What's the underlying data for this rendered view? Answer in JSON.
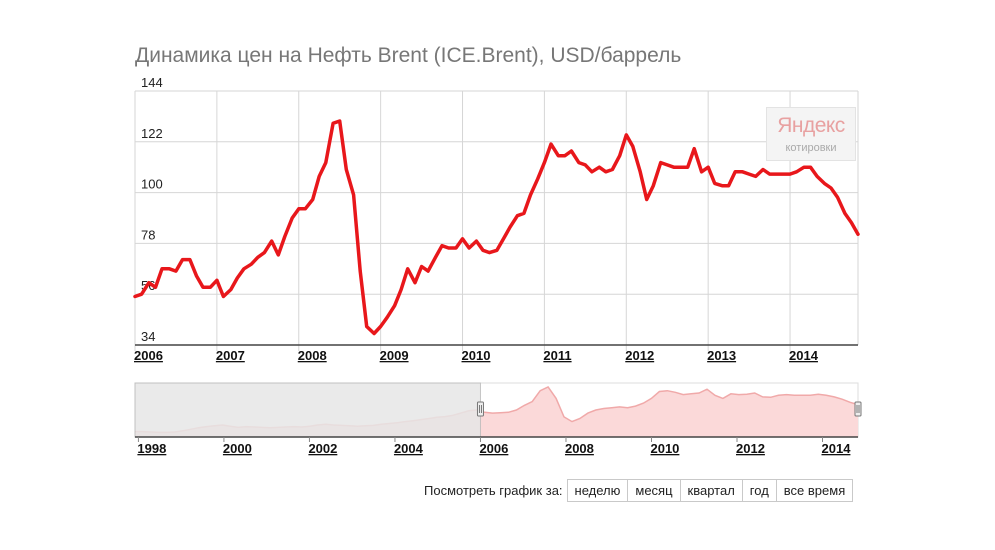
{
  "title": "Динамика цен на Нефть Brent (ICE.Brent), USD/баррель",
  "logo": {
    "name": "Яндекс",
    "subtitle": "котировки"
  },
  "colors": {
    "line": "#e8171b",
    "grid": "#d6d6d6",
    "navigator_fill": "#fbd9d9",
    "navigator_line": "#f0a9a9",
    "selection_mask": "#e7e7e7"
  },
  "period_selector": {
    "label": "Посмотреть график за:",
    "options": [
      "неделю",
      "месяц",
      "квартал",
      "год",
      "все время"
    ]
  },
  "chart_data": {
    "type": "line",
    "title": "Динамика цен на Нефть Brent (ICE.Brent), USD/баррель",
    "xlabel": "",
    "ylabel": "",
    "ylim": [
      34,
      144
    ],
    "xlim": [
      2006.0,
      2014.83
    ],
    "yticks": [
      "144",
      "122",
      "100",
      "78",
      "56",
      "34"
    ],
    "xticks": [
      "2006",
      "2007",
      "2008",
      "2009",
      "2010",
      "2011",
      "2012",
      "2013",
      "2014"
    ],
    "grid": true,
    "series": [
      {
        "x": [
          2006.0,
          2006.08,
          2006.17,
          2006.25,
          2006.33,
          2006.42,
          2006.5,
          2006.58,
          2006.67,
          2006.75,
          2006.83,
          2006.92,
          2007.0,
          2007.08,
          2007.17,
          2007.25,
          2007.33,
          2007.42,
          2007.5,
          2007.58,
          2007.67,
          2007.75,
          2007.83,
          2007.92,
          2008.0,
          2008.08,
          2008.17,
          2008.25,
          2008.33,
          2008.42,
          2008.5,
          2008.58,
          2008.67,
          2008.75,
          2008.83,
          2008.92,
          2009.0,
          2009.08,
          2009.17,
          2009.25,
          2009.33,
          2009.42,
          2009.5,
          2009.58,
          2009.67,
          2009.75,
          2009.83,
          2009.92,
          2010.0,
          2010.08,
          2010.17,
          2010.25,
          2010.33,
          2010.42,
          2010.5,
          2010.58,
          2010.67,
          2010.75,
          2010.83,
          2010.92,
          2011.0,
          2011.08,
          2011.17,
          2011.25,
          2011.33,
          2011.42,
          2011.5,
          2011.58,
          2011.67,
          2011.75,
          2011.83,
          2011.92,
          2012.0,
          2012.08,
          2012.17,
          2012.25,
          2012.33,
          2012.42,
          2012.5,
          2012.58,
          2012.67,
          2012.75,
          2012.83,
          2012.92,
          2013.0,
          2013.08,
          2013.17,
          2013.25,
          2013.33,
          2013.42,
          2013.5,
          2013.58,
          2013.67,
          2013.75,
          2013.83,
          2013.92,
          2014.0,
          2014.08,
          2014.17,
          2014.25,
          2014.33,
          2014.42,
          2014.5,
          2014.58,
          2014.67,
          2014.75,
          2014.83
        ],
        "values": [
          55,
          56,
          61,
          59,
          67,
          67,
          66,
          71,
          71,
          64,
          59,
          59,
          62,
          55,
          58,
          63,
          67,
          69,
          72,
          74,
          79,
          73,
          81,
          89,
          93,
          93,
          97,
          107,
          113,
          130,
          131,
          110,
          99,
          66,
          42,
          39,
          42,
          46,
          51,
          58,
          67,
          61,
          68,
          66,
          72,
          77,
          76,
          76,
          80,
          76,
          79,
          75,
          74,
          75,
          80,
          85,
          90,
          91,
          99,
          106,
          113,
          121,
          116,
          116,
          118,
          113,
          112,
          109,
          111,
          109,
          110,
          116,
          125,
          120,
          109,
          97,
          103,
          113,
          112,
          111,
          111,
          111,
          119,
          109,
          111,
          104,
          103,
          103,
          109,
          109,
          108,
          107,
          110,
          108,
          108,
          108,
          108,
          109,
          111,
          111,
          107,
          104,
          102,
          98,
          91,
          87,
          82
        ]
      }
    ],
    "navigator": {
      "xticks": [
        "1998",
        "2000",
        "2002",
        "2004",
        "2006",
        "2008",
        "2010",
        "2012",
        "2014"
      ],
      "xlim": [
        1997.92,
        2014.83
      ],
      "selection": [
        1997.92,
        2006.0
      ],
      "values": [
        14,
        14,
        13,
        12,
        12,
        13,
        16,
        20,
        24,
        27,
        29,
        31,
        28,
        25,
        27,
        26,
        25,
        24,
        25,
        26,
        27,
        26,
        28,
        31,
        33,
        31,
        30,
        29,
        28,
        29,
        30,
        33,
        35,
        37,
        40,
        42,
        45,
        48,
        51,
        53,
        56,
        62,
        68,
        70,
        64,
        62,
        63,
        64,
        70,
        82,
        92,
        120,
        130,
        100,
        52,
        40,
        48,
        62,
        70,
        74,
        76,
        78,
        76,
        80,
        88,
        100,
        118,
        120,
        116,
        110,
        112,
        114,
        124,
        108,
        100,
        112,
        110,
        111,
        114,
        104,
        103,
        108,
        110,
        108,
        108,
        108,
        111,
        108,
        104,
        98,
        90,
        84
      ]
    }
  }
}
